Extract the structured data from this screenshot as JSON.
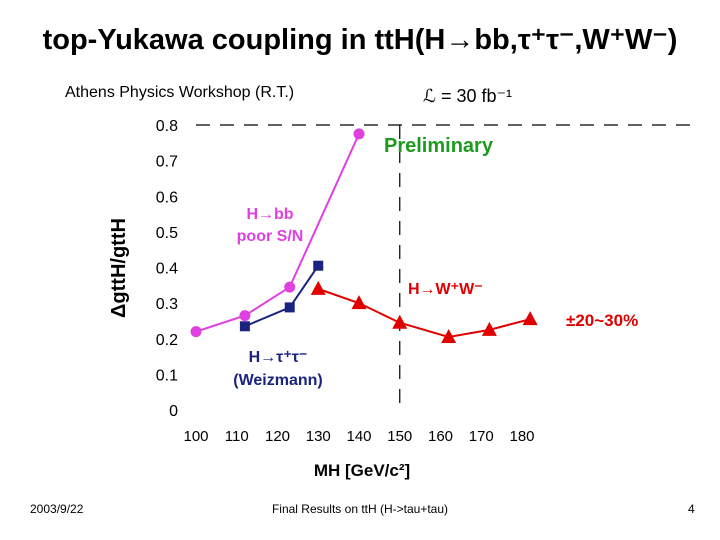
{
  "slide": {
    "title": "top-Yukawa coupling in ttH(H→bb,τ⁺τ⁻,W⁺W⁻)",
    "workshop": "Athens Physics Workshop (R.T.)",
    "luminosity": "ℒ = 30 fb⁻¹",
    "date": "2003/9/22",
    "footer": "Final Results on ttH (H->tau+tau)",
    "page_number": "4"
  },
  "chart_data": {
    "type": "line",
    "xlabel": "MH [GeV/c²]",
    "ylabel": "ΔgttH/gttH",
    "xlim": [
      100,
      180
    ],
    "ylim": [
      0,
      0.8
    ],
    "x_ticks": [
      "100",
      "110",
      "120",
      "130",
      "140",
      "150",
      "160",
      "170",
      "180"
    ],
    "y_ticks": [
      "0",
      "0.1",
      "0.2",
      "0.3",
      "0.4",
      "0.5",
      "0.6",
      "0.7",
      "0.8"
    ],
    "grid": false,
    "series": [
      {
        "key": "bb",
        "color": "#e040e0",
        "marker": "circle",
        "x": [
          100,
          112,
          123,
          140
        ],
        "y": [
          0.22,
          0.265,
          0.345,
          0.775
        ]
      },
      {
        "key": "tautau",
        "color": "#1a237e",
        "marker": "square",
        "x": [
          112,
          123,
          130
        ],
        "y": [
          0.235,
          0.288,
          0.405
        ]
      },
      {
        "key": "ww",
        "color": "#e00000",
        "marker": "triangle",
        "x": [
          130,
          140,
          150,
          162,
          172,
          182
        ],
        "y": [
          0.34,
          0.3,
          0.245,
          0.205,
          0.225,
          0.255
        ]
      }
    ],
    "annotations": {
      "preliminary": "Preliminary",
      "preliminary_color": "#1e9a1e",
      "bb_line1": "H→bb",
      "bb_line2": "poor S/N",
      "ww": "H→W⁺W⁻",
      "tautau_line1": "H→τ⁺τ⁻",
      "tautau_line2": "(Weizmann)",
      "range": "±20~30%",
      "range_color": "#e00000"
    }
  }
}
